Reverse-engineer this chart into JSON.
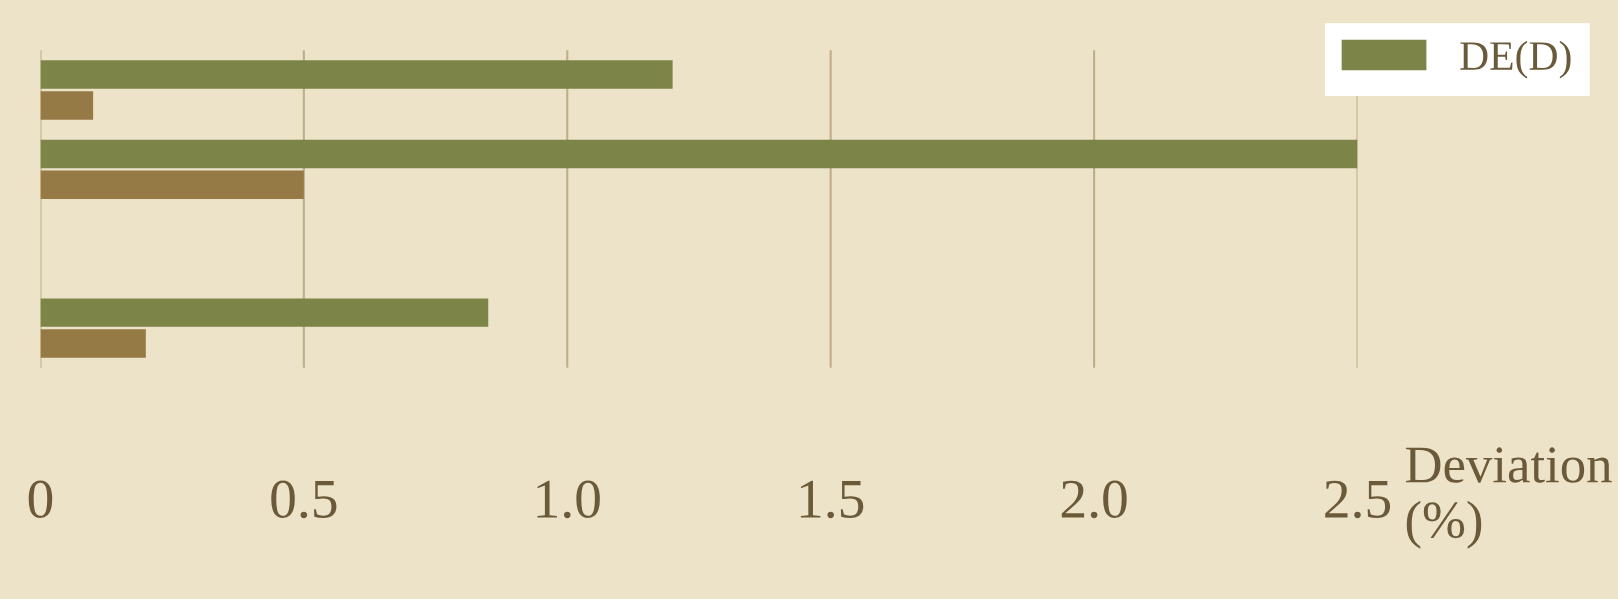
{
  "chart_data": {
    "type": "bar",
    "orientation": "horizontal",
    "xlabel": "Deviation (%)",
    "categories": [
      null,
      null,
      null,
      null
    ],
    "series": [
      {
        "name": "DE(D)",
        "color": "#7c8547",
        "values": [
          1.2,
          2.5,
          null,
          0.85
        ]
      },
      {
        "color": "#957a45",
        "values": [
          0.1,
          0.5,
          null,
          0.2
        ]
      }
    ],
    "xlim": [
      0,
      2.5
    ],
    "xticks": [
      0,
      0.5,
      {
        "value": 1.0,
        "label": "1.0"
      },
      1.5,
      {
        "value": 2.0,
        "label": "2.0"
      },
      2.5
    ],
    "grid": "x",
    "legend": "top right"
  }
}
